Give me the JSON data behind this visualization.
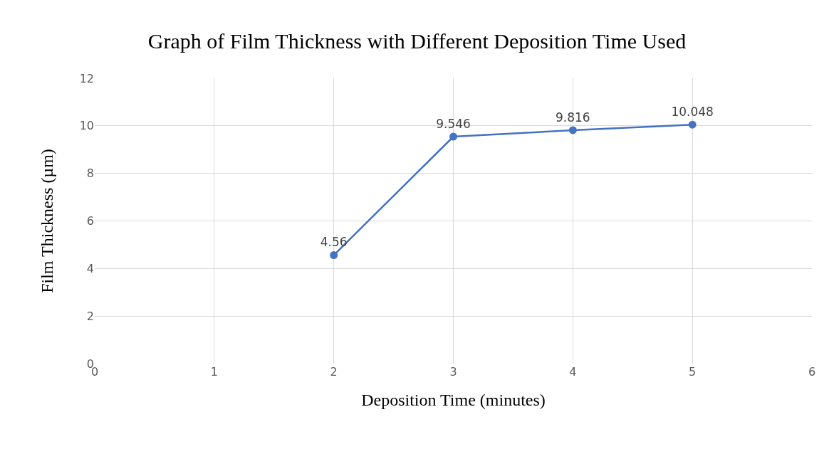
{
  "chart_data": {
    "type": "line",
    "title": "Graph of Film Thickness with Different Deposition Time Used",
    "xlabel": "Deposition Time (minutes)",
    "ylabel": "Film Thickness (µm)",
    "x": [
      2,
      3,
      4,
      5
    ],
    "series": [
      {
        "color": "#4472c4",
        "values": [
          4.56,
          9.546,
          9.816,
          10.048
        ]
      }
    ],
    "xlim": [
      0,
      6
    ],
    "xticks": [
      0,
      1,
      2,
      3,
      4,
      5,
      6
    ],
    "ylim": [
      0,
      12
    ],
    "yticks": [
      0,
      2,
      4,
      6,
      8,
      10,
      12
    ],
    "grid": true,
    "marker": "circle",
    "line_style": "solid",
    "data_labels": true,
    "legend": false
  }
}
